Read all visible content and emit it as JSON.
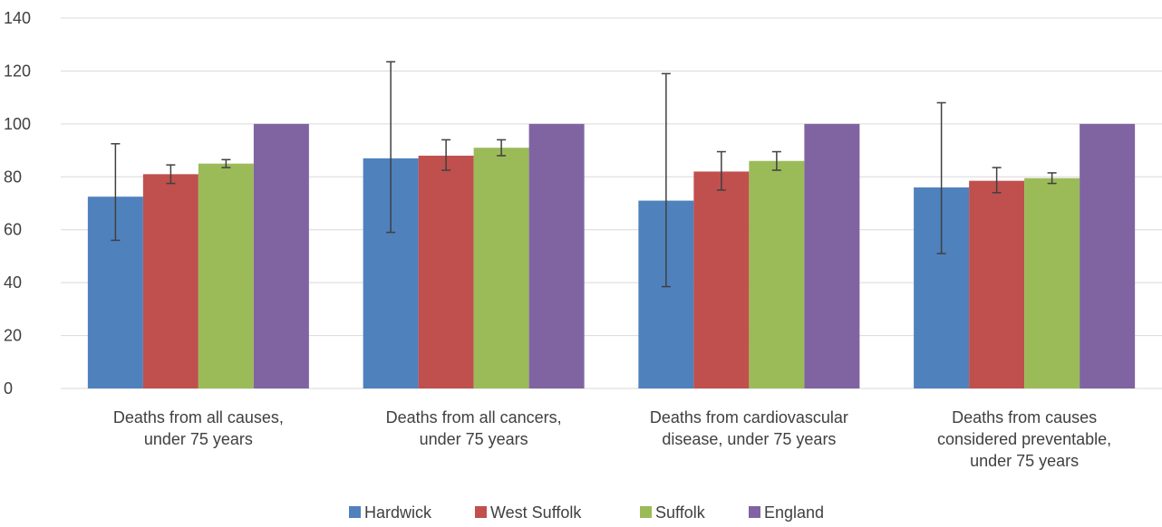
{
  "chart_data": {
    "type": "bar",
    "title": "",
    "xlabel": "",
    "ylabel": "",
    "ylim": [
      0,
      140
    ],
    "yticks": [
      0,
      20,
      40,
      60,
      80,
      100,
      120,
      140
    ],
    "grid": true,
    "legend_position": "bottom",
    "categories": [
      [
        "Deaths from all causes,",
        "under 75 years"
      ],
      [
        "Deaths from all cancers,",
        "under 75 years"
      ],
      [
        "Deaths from cardiovascular",
        "disease, under 75 years"
      ],
      [
        "Deaths from causes",
        "considered preventable,",
        "under 75 years"
      ]
    ],
    "series": [
      {
        "name": "Hardwick",
        "color": "#4f81bd",
        "values": [
          72.5,
          87,
          71,
          76
        ],
        "error_low": [
          56,
          59,
          38.5,
          51
        ],
        "error_high": [
          92.5,
          123.5,
          119,
          108
        ]
      },
      {
        "name": "West Suffolk",
        "color": "#c0504d",
        "values": [
          81,
          88,
          82,
          78.5
        ],
        "error_low": [
          77.5,
          82.5,
          75,
          74
        ],
        "error_high": [
          84.5,
          94,
          89.5,
          83.5
        ]
      },
      {
        "name": "Suffolk",
        "color": "#9bbb59",
        "values": [
          85,
          91,
          86,
          79.5
        ],
        "error_low": [
          83.5,
          88,
          82.5,
          77.5
        ],
        "error_high": [
          86.5,
          94,
          89.5,
          81.5
        ]
      },
      {
        "name": "England",
        "color": "#8064a2",
        "values": [
          100,
          100,
          100,
          100
        ],
        "error_low": null,
        "error_high": null
      }
    ]
  }
}
